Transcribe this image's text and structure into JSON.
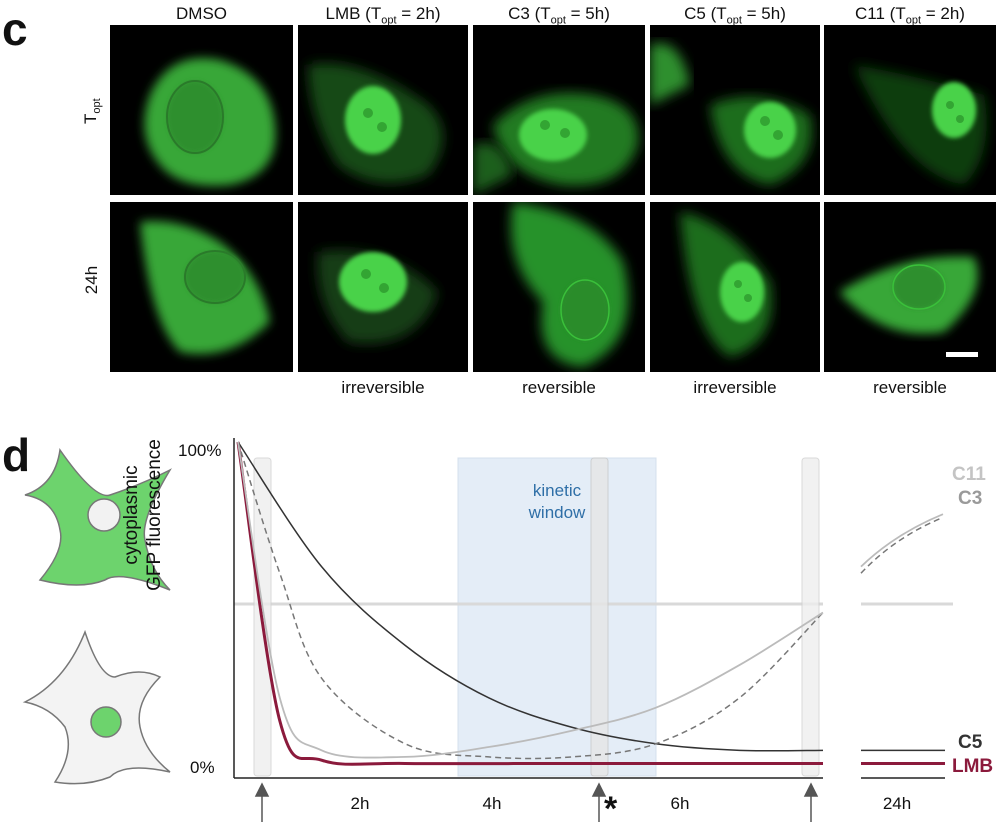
{
  "panel_c": {
    "letter": "c",
    "columns": [
      {
        "main": "DMSO",
        "sub": "",
        "tail": ""
      },
      {
        "main": "LMB (T",
        "sub": "opt",
        "tail": " = 2h)"
      },
      {
        "main": "C3 (T",
        "sub": "opt",
        "tail": " = 5h)"
      },
      {
        "main": "C5 (T",
        "sub": "opt",
        "tail": " = 5h)"
      },
      {
        "main": "C11 (T",
        "sub": "opt",
        "tail": " = 2h)"
      }
    ],
    "rows": [
      {
        "main": "T",
        "sub": "opt"
      },
      {
        "main": "24h",
        "sub": ""
      }
    ],
    "reversibility": [
      "irreversible",
      "reversible",
      "irreversible",
      "reversible"
    ]
  },
  "panel_d": {
    "letter": "d",
    "y_axis_label_line1": "cytoplasmic",
    "y_axis_label_line2": "GFP fluorescence",
    "y_top_label": "100%",
    "y_bottom_label": "0%",
    "x_tick_labels": [
      "2h",
      "4h",
      "6h"
    ],
    "x_break_label": "24h",
    "kinetic_window_line1": "kinetic",
    "kinetic_window_line2": "window",
    "asterisk": "*",
    "series_labels": [
      "C11",
      "C3",
      "C5",
      "LMB"
    ],
    "colors": {
      "LMB": "#8b1a3c",
      "C5": "#333333",
      "C3": "#777777",
      "C11": "#bbbbbb",
      "window": "#dbe8f5",
      "cell_green": "#6dd36d"
    }
  },
  "chart_data": {
    "type": "line",
    "xlabel": "",
    "ylabel": "cytoplasmic GFP fluorescence",
    "x_ticks": [
      "2h",
      "4h",
      "6h",
      "24h"
    ],
    "ylim": [
      0,
      100
    ],
    "series": [
      {
        "name": "LMB",
        "x": [
          0,
          0.5,
          1,
          2,
          4,
          6,
          7,
          24
        ],
        "values": [
          100,
          15,
          3,
          2,
          2,
          2,
          2,
          2
        ]
      },
      {
        "name": "C5",
        "x": [
          0,
          1,
          2,
          3,
          4,
          5,
          6,
          7,
          24
        ],
        "values": [
          100,
          62,
          38,
          22,
          13,
          8,
          6,
          6,
          6
        ]
      },
      {
        "name": "C3",
        "x": [
          0,
          0.5,
          1,
          2,
          3,
          4,
          5,
          6,
          7,
          24
        ],
        "values": [
          100,
          60,
          28,
          8,
          4,
          4,
          8,
          22,
          48,
          77
        ]
      },
      {
        "name": "C11",
        "x": [
          0,
          0.5,
          1,
          2,
          3,
          4,
          5,
          6,
          7,
          24
        ],
        "values": [
          100,
          22,
          6,
          4,
          7,
          12,
          19,
          32,
          48,
          78
        ]
      }
    ]
  }
}
